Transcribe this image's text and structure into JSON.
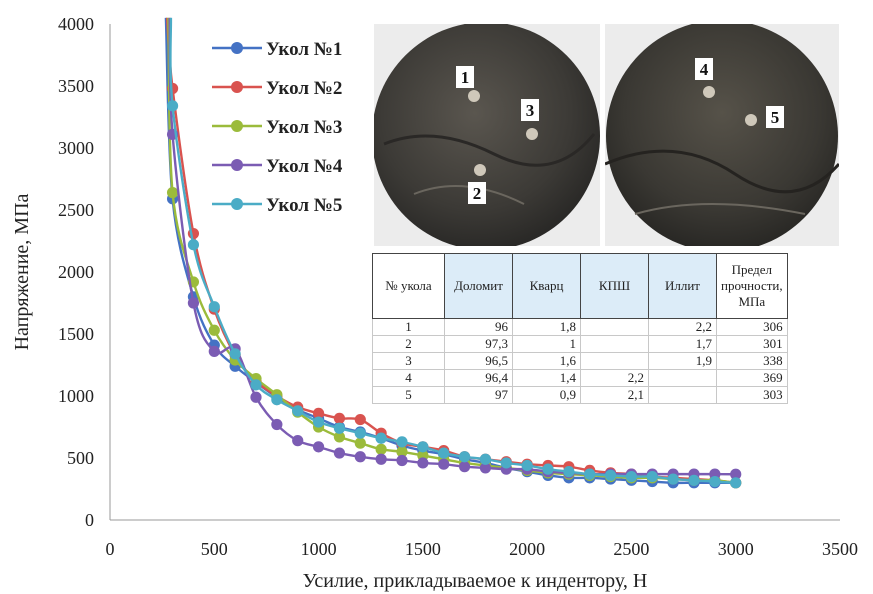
{
  "chart_data": {
    "type": "scatter",
    "xlabel": "Усилие, прикладываемое к индентору, Н",
    "ylabel": "Напряжение, МПа",
    "xlim": [
      0,
      3500
    ],
    "ylim": [
      0,
      4000
    ],
    "xticks": [
      "0",
      "500",
      "1000",
      "1500",
      "2000",
      "2500",
      "3000",
      "3500"
    ],
    "yticks": [
      "0",
      "500",
      "1000",
      "1500",
      "2000",
      "2500",
      "3000",
      "3500",
      "4000"
    ],
    "grid": false,
    "legend_position": "top-left inside",
    "series": [
      {
        "name": "Укол №1",
        "color": "#4472c4",
        "x": [
          300,
          400,
          500,
          600,
          700,
          800,
          900,
          1000,
          1100,
          1200,
          1300,
          1400,
          1500,
          1600,
          1700,
          1800,
          1900,
          2000,
          2100,
          2200,
          2300,
          2400,
          2500,
          2600,
          2700,
          2800,
          2900,
          3000
        ],
        "y": [
          2590,
          1800,
          1410,
          1240,
          1110,
          990,
          890,
          820,
          750,
          710,
          660,
          600,
          560,
          530,
          490,
          460,
          420,
          390,
          360,
          340,
          340,
          330,
          320,
          310,
          300,
          300,
          300,
          300
        ]
      },
      {
        "name": "Укол №2",
        "color": "#d9534f",
        "x": [
          300,
          400,
          500,
          600,
          700,
          800,
          900,
          1000,
          1100,
          1200,
          1300,
          1400,
          1500,
          1600,
          1700,
          1800,
          1900,
          2000,
          2100,
          2200,
          2300,
          2400,
          2500,
          2600,
          2700,
          2800,
          2900,
          3000
        ],
        "y": [
          3480,
          2310,
          1700,
          1330,
          1120,
          1000,
          910,
          860,
          820,
          810,
          700,
          620,
          590,
          560,
          510,
          490,
          470,
          450,
          440,
          430,
          400,
          380,
          370,
          350,
          340,
          330,
          320,
          300
        ]
      },
      {
        "name": "Укол №3",
        "color": "#9bbb3b",
        "x": [
          300,
          400,
          500,
          600,
          700,
          800,
          900,
          1000,
          1100,
          1200,
          1300,
          1400,
          1500,
          1600,
          1700,
          1800,
          1900,
          2000,
          2100,
          2200,
          2300,
          2400,
          2500,
          2600,
          2700,
          2800,
          2900,
          3000
        ],
        "y": [
          2640,
          1920,
          1530,
          1290,
          1140,
          1010,
          870,
          750,
          670,
          620,
          570,
          550,
          520,
          490,
          460,
          440,
          420,
          400,
          380,
          370,
          360,
          350,
          340,
          340,
          330,
          320,
          320,
          300
        ]
      },
      {
        "name": "Укол №4",
        "color": "#7b5cb3",
        "x": [
          300,
          400,
          500,
          600,
          700,
          800,
          900,
          1000,
          1100,
          1200,
          1300,
          1400,
          1500,
          1600,
          1700,
          1800,
          1900,
          2000,
          2100,
          2200,
          2300,
          2400,
          2500,
          2600,
          2700,
          2800,
          2900,
          3000
        ],
        "y": [
          3110,
          1750,
          1360,
          1380,
          990,
          770,
          640,
          590,
          540,
          510,
          490,
          480,
          460,
          450,
          430,
          420,
          410,
          410,
          390,
          380,
          370,
          370,
          370,
          370,
          370,
          370,
          370,
          369
        ]
      },
      {
        "name": "Укол №5",
        "color": "#4bacc6",
        "x": [
          300,
          400,
          500,
          600,
          700,
          800,
          900,
          1000,
          1100,
          1200,
          1300,
          1400,
          1500,
          1600,
          1700,
          1800,
          1900,
          2000,
          2100,
          2200,
          2300,
          2400,
          2500,
          2600,
          2700,
          2800,
          2900,
          3000
        ],
        "y": [
          3340,
          2220,
          1720,
          1340,
          1090,
          970,
          880,
          790,
          740,
          700,
          660,
          630,
          590,
          540,
          510,
          490,
          460,
          440,
          410,
          390,
          370,
          360,
          350,
          350,
          330,
          320,
          310,
          300
        ]
      }
    ]
  },
  "photo_labels": {
    "left": [
      "1",
      "3",
      "2"
    ],
    "right": [
      "4",
      "5"
    ]
  },
  "table": {
    "headers": [
      "№ укола",
      "Доломит",
      "Кварц",
      "КПШ",
      "Иллит",
      "Предел прочности, МПа"
    ],
    "header_highlight": [
      false,
      true,
      true,
      true,
      true,
      false
    ],
    "rows": [
      [
        "1",
        "96",
        "1,8",
        "",
        "2,2",
        "306"
      ],
      [
        "2",
        "97,3",
        "1",
        "",
        "1,7",
        "301"
      ],
      [
        "3",
        "96,5",
        "1,6",
        "",
        "1,9",
        "338"
      ],
      [
        "4",
        "96,4",
        "1,4",
        "2,2",
        "",
        "369"
      ],
      [
        "5",
        "97",
        "0,9",
        "2,1",
        "",
        "303"
      ]
    ]
  }
}
